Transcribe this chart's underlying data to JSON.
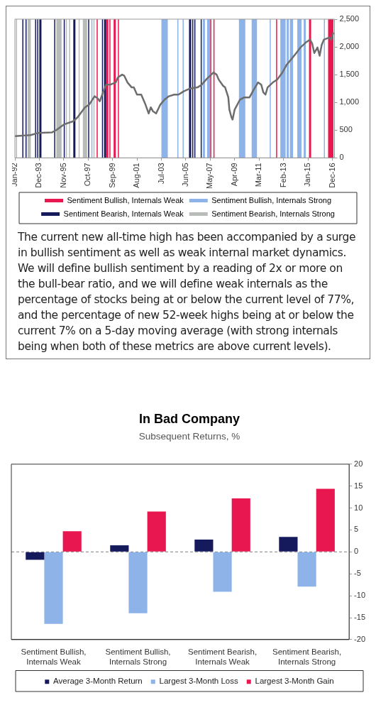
{
  "chart_data": [
    {
      "type": "line",
      "x": [
        "1992-01",
        "1993-04",
        "1993-11",
        "1994-12",
        "1995-04",
        "1995-11",
        "1996-08",
        "1996-12",
        "1997-07",
        "1997-11",
        "1998-04",
        "1998-07",
        "1998-09",
        "1999-01",
        "1999-03",
        "1999-07",
        "1999-12",
        "2000-02",
        "2000-06",
        "2000-08",
        "2000-11",
        "2001-03",
        "2001-05",
        "2001-08",
        "2001-12",
        "2002-04",
        "2002-07",
        "2002-09",
        "2002-11",
        "2003-02",
        "2003-06",
        "2003-10",
        "2004-02",
        "2004-07",
        "2004-11",
        "2005-04",
        "2005-10",
        "2006-05",
        "2006-09",
        "2007-02",
        "2007-06",
        "2007-08",
        "2007-11",
        "2008-01",
        "2008-05",
        "2008-07",
        "2008-10",
        "2008-11",
        "2009-01",
        "2009-02",
        "2009-04",
        "2009-09",
        "2010-01",
        "2010-06",
        "2010-10",
        "2011-02",
        "2011-05",
        "2011-07",
        "2011-09",
        "2011-11",
        "2012-04",
        "2012-08",
        "2013-01",
        "2013-05",
        "2013-09",
        "2014-02",
        "2014-06",
        "2014-11",
        "2015-03",
        "2015-05",
        "2015-07",
        "2015-10",
        "2015-12",
        "2016-02",
        "2016-04",
        "2016-09",
        "2016-11",
        "2017-01"
      ],
      "series": [
        {
          "color": "#6d6d6d",
          "values": [
            390,
            410,
            450,
            460,
            500,
            600,
            660,
            730,
            910,
            960,
            1110,
            1070,
            1020,
            1230,
            1320,
            1320,
            1360,
            1450,
            1500,
            1480,
            1360,
            1270,
            1270,
            1140,
            1140,
            960,
            800,
            910,
            840,
            800,
            960,
            1050,
            1110,
            1140,
            1140,
            1200,
            1250,
            1270,
            1320,
            1430,
            1500,
            1540,
            1500,
            1410,
            1300,
            1270,
            1090,
            870,
            730,
            690,
            870,
            1050,
            1090,
            1090,
            1230,
            1360,
            1320,
            1180,
            1140,
            1270,
            1360,
            1410,
            1540,
            1680,
            1770,
            1890,
            1990,
            2080,
            2130,
            2060,
            1890,
            1990,
            1840,
            2040,
            2130,
            2170,
            2130,
            2260
          ]
        }
      ],
      "xlim": [
        "1992-01",
        "2017-02"
      ],
      "xticks": [
        {
          "value": "1992-01",
          "label": "Jan-92"
        },
        {
          "value": "1993-12",
          "label": "Dec-93"
        },
        {
          "value": "1995-11",
          "label": "Nov-95"
        },
        {
          "value": "1997-10",
          "label": "Oct-97"
        },
        {
          "value": "1999-09",
          "label": "Sep-99"
        },
        {
          "value": "2001-08",
          "label": "Aug-01"
        },
        {
          "value": "2003-07",
          "label": "Jul-03"
        },
        {
          "value": "2005-06",
          "label": "Jun-05"
        },
        {
          "value": "2007-05",
          "label": "May-07"
        },
        {
          "value": "2009-04",
          "label": "Apr-09"
        },
        {
          "value": "2011-03",
          "label": "Mar-11"
        },
        {
          "value": "2013-02",
          "label": "Feb-13"
        },
        {
          "value": "2015-01",
          "label": "Jan-15"
        },
        {
          "value": "2016-12",
          "label": "Dec-16"
        }
      ],
      "ylim": [
        0,
        2500
      ],
      "yticks": [
        0,
        500,
        {
          "value": 1000,
          "label": "1,000"
        },
        {
          "value": 1500,
          "label": "1,500"
        },
        {
          "value": 2000,
          "label": "2,000"
        },
        {
          "value": 2500,
          "label": "2,500"
        }
      ],
      "marker": "none",
      "grid": false,
      "legend": "bottom",
      "bands": [
        {
          "axis": "x",
          "from": "1998-06",
          "to": "1998-07",
          "label": "Sentiment Bullish, Internals Weak",
          "color": "#e8174f"
        },
        {
          "axis": "x",
          "from": "1998-01",
          "to": "1998-02",
          "label": "Sentiment Bullish, Internals Strong",
          "color": "#8db3e8"
        },
        {
          "axis": "x",
          "from": "1992-08",
          "to": "1992-09",
          "label": "Sentiment Bearish, Internals Weak",
          "color": "#141a5c"
        },
        {
          "axis": "x",
          "from": "1992-02",
          "to": "1992-03",
          "label": "Sentiment Bearish, Internals Strong",
          "color": "#b8bcb8"
        },
        {
          "axis": "x",
          "from": "1992-11",
          "to": "1992-12",
          "color": "#141a5c"
        },
        {
          "axis": "x",
          "from": "1993-01",
          "to": "1993-04",
          "color": "#b8bcb8"
        },
        {
          "axis": "x",
          "from": "1993-08",
          "to": "1993-09",
          "color": "#141a5c"
        },
        {
          "axis": "x",
          "from": "1993-10",
          "to": "1993-11",
          "color": "#141a5c"
        },
        {
          "axis": "x",
          "from": "1993-12",
          "to": "1994-02",
          "color": "#141a5c"
        },
        {
          "axis": "x",
          "from": "1995-02",
          "to": "1995-03",
          "color": "#141a5c"
        },
        {
          "axis": "x",
          "from": "1995-04",
          "to": "1995-09",
          "color": "#b8bcb8"
        },
        {
          "axis": "x",
          "from": "1995-11",
          "to": "1995-12",
          "color": "#141a5c"
        },
        {
          "axis": "x",
          "from": "1996-01",
          "to": "1996-02",
          "color": "#b8bcb8"
        },
        {
          "axis": "x",
          "from": "1996-04",
          "to": "1996-05",
          "color": "#b8bcb8"
        },
        {
          "axis": "x",
          "from": "1996-08",
          "to": "1996-10",
          "color": "#141a5c"
        },
        {
          "axis": "x",
          "from": "1997-01",
          "to": "1997-02",
          "color": "#b8bcb8"
        },
        {
          "axis": "x",
          "from": "1997-05",
          "to": "1997-09",
          "color": "#b8bcb8"
        },
        {
          "axis": "x",
          "from": "1997-10",
          "to": "1997-11",
          "color": "#141a5c"
        },
        {
          "axis": "x",
          "from": "1998-03",
          "to": "1998-04",
          "color": "#b8bcb8"
        },
        {
          "axis": "x",
          "from": "1998-11",
          "to": "1998-12",
          "color": "#141a5c"
        },
        {
          "axis": "x",
          "from": "1999-01",
          "to": "1999-03",
          "color": "#141a5c"
        },
        {
          "axis": "x",
          "from": "1999-03",
          "to": "1999-05",
          "color": "#e8174f"
        },
        {
          "axis": "x",
          "from": "1999-06",
          "to": "1999-07",
          "color": "#e8174f"
        },
        {
          "axis": "x",
          "from": "1999-10",
          "to": "1999-12",
          "color": "#e8174f"
        },
        {
          "axis": "x",
          "from": "2000-02",
          "to": "2000-03",
          "color": "#e8174f"
        },
        {
          "axis": "x",
          "from": "2003-07",
          "to": "2004-01",
          "color": "#8db3e8"
        },
        {
          "axis": "x",
          "from": "2004-10",
          "to": "2004-11",
          "color": "#8db3e8"
        },
        {
          "axis": "x",
          "from": "2005-03",
          "to": "2005-04",
          "color": "#8db3e8"
        },
        {
          "axis": "x",
          "from": "2005-09",
          "to": "2005-11",
          "color": "#141a5c"
        },
        {
          "axis": "x",
          "from": "2005-12",
          "to": "2006-01",
          "color": "#141a5c"
        },
        {
          "axis": "x",
          "from": "2006-02",
          "to": "2006-03",
          "color": "#141a5c"
        },
        {
          "axis": "x",
          "from": "2006-08",
          "to": "2006-09",
          "color": "#141a5c"
        },
        {
          "axis": "x",
          "from": "2006-10",
          "to": "2006-12",
          "color": "#8db3e8"
        },
        {
          "axis": "x",
          "from": "2007-02",
          "to": "2007-05",
          "color": "#8db3e8"
        },
        {
          "axis": "x",
          "from": "2007-05",
          "to": "2007-06",
          "color": "#e8174f"
        },
        {
          "axis": "x",
          "from": "2007-08",
          "to": "2007-09",
          "color": "#e8174f"
        },
        {
          "axis": "x",
          "from": "2009-08",
          "to": "2010-02",
          "color": "#8db3e8"
        },
        {
          "axis": "x",
          "from": "2010-08",
          "to": "2011-01",
          "color": "#8db3e8"
        },
        {
          "axis": "x",
          "from": "2012-01",
          "to": "2012-02",
          "color": "#8db3e8"
        },
        {
          "axis": "x",
          "from": "2012-07",
          "to": "2012-08",
          "color": "#e8174f"
        },
        {
          "axis": "x",
          "from": "2012-11",
          "to": "2013-04",
          "color": "#8db3e8"
        },
        {
          "axis": "x",
          "from": "2013-05",
          "to": "2013-07",
          "color": "#8db3e8"
        },
        {
          "axis": "x",
          "from": "2013-08",
          "to": "2013-11",
          "color": "#8db3e8"
        },
        {
          "axis": "x",
          "from": "2014-03",
          "to": "2014-07",
          "color": "#8db3e8"
        },
        {
          "axis": "x",
          "from": "2014-09",
          "to": "2014-11",
          "color": "#8db3e8"
        },
        {
          "axis": "x",
          "from": "2015-02",
          "to": "2015-04",
          "color": "#e8174f"
        },
        {
          "axis": "x",
          "from": "2016-04",
          "to": "2016-05",
          "color": "#8db3e8"
        },
        {
          "axis": "x",
          "from": "2016-08",
          "to": "2017-01",
          "color": "#e8174f"
        }
      ],
      "annotations": [
        "The current new all-time high has been accompanied by a surge in bullish sentiment as well as weak internal market dynamics. We will define bullish sentiment by a reading of 2x or more on the bull-bear ratio, and we will define weak internals as the percentage of stocks being at or below the current level of 77%, and the percentage of new 52-week highs being at or below the current 7% on a 5-day moving average (with strong internals being when both of these metrics are above current levels)."
      ]
    },
    {
      "type": "bar",
      "title": "In Bad Company",
      "subtitle": "Subsequent Returns, %",
      "categories": [
        "Sentiment Bullish, Internals Weak",
        "Sentiment Bullish, Internals Strong",
        "Sentiment Bearish, Internals Weak",
        "Sentiment Bearish, Internals Strong"
      ],
      "series": [
        {
          "name": "Average 3-Month Return",
          "color": "#141a5c",
          "values": [
            -1.8,
            1.5,
            2.8,
            3.4
          ]
        },
        {
          "name": "Largest 3-Month Loss",
          "color": "#8db3e8",
          "values": [
            -16.4,
            -14,
            -9.1,
            -7.9
          ]
        },
        {
          "name": "Largest 3-Month Gain",
          "color": "#e8174f",
          "values": [
            4.7,
            9.2,
            12.2,
            14.4
          ]
        }
      ],
      "ylim": [
        -20,
        20
      ],
      "yticks": [
        -20,
        -15,
        -10,
        -5,
        0,
        5,
        10,
        15,
        20
      ],
      "ref_lines": [
        {
          "axis": "y",
          "value": 0,
          "color": "#808080",
          "line_style": "dashed"
        }
      ],
      "grid": false,
      "legend": "bottom"
    }
  ]
}
